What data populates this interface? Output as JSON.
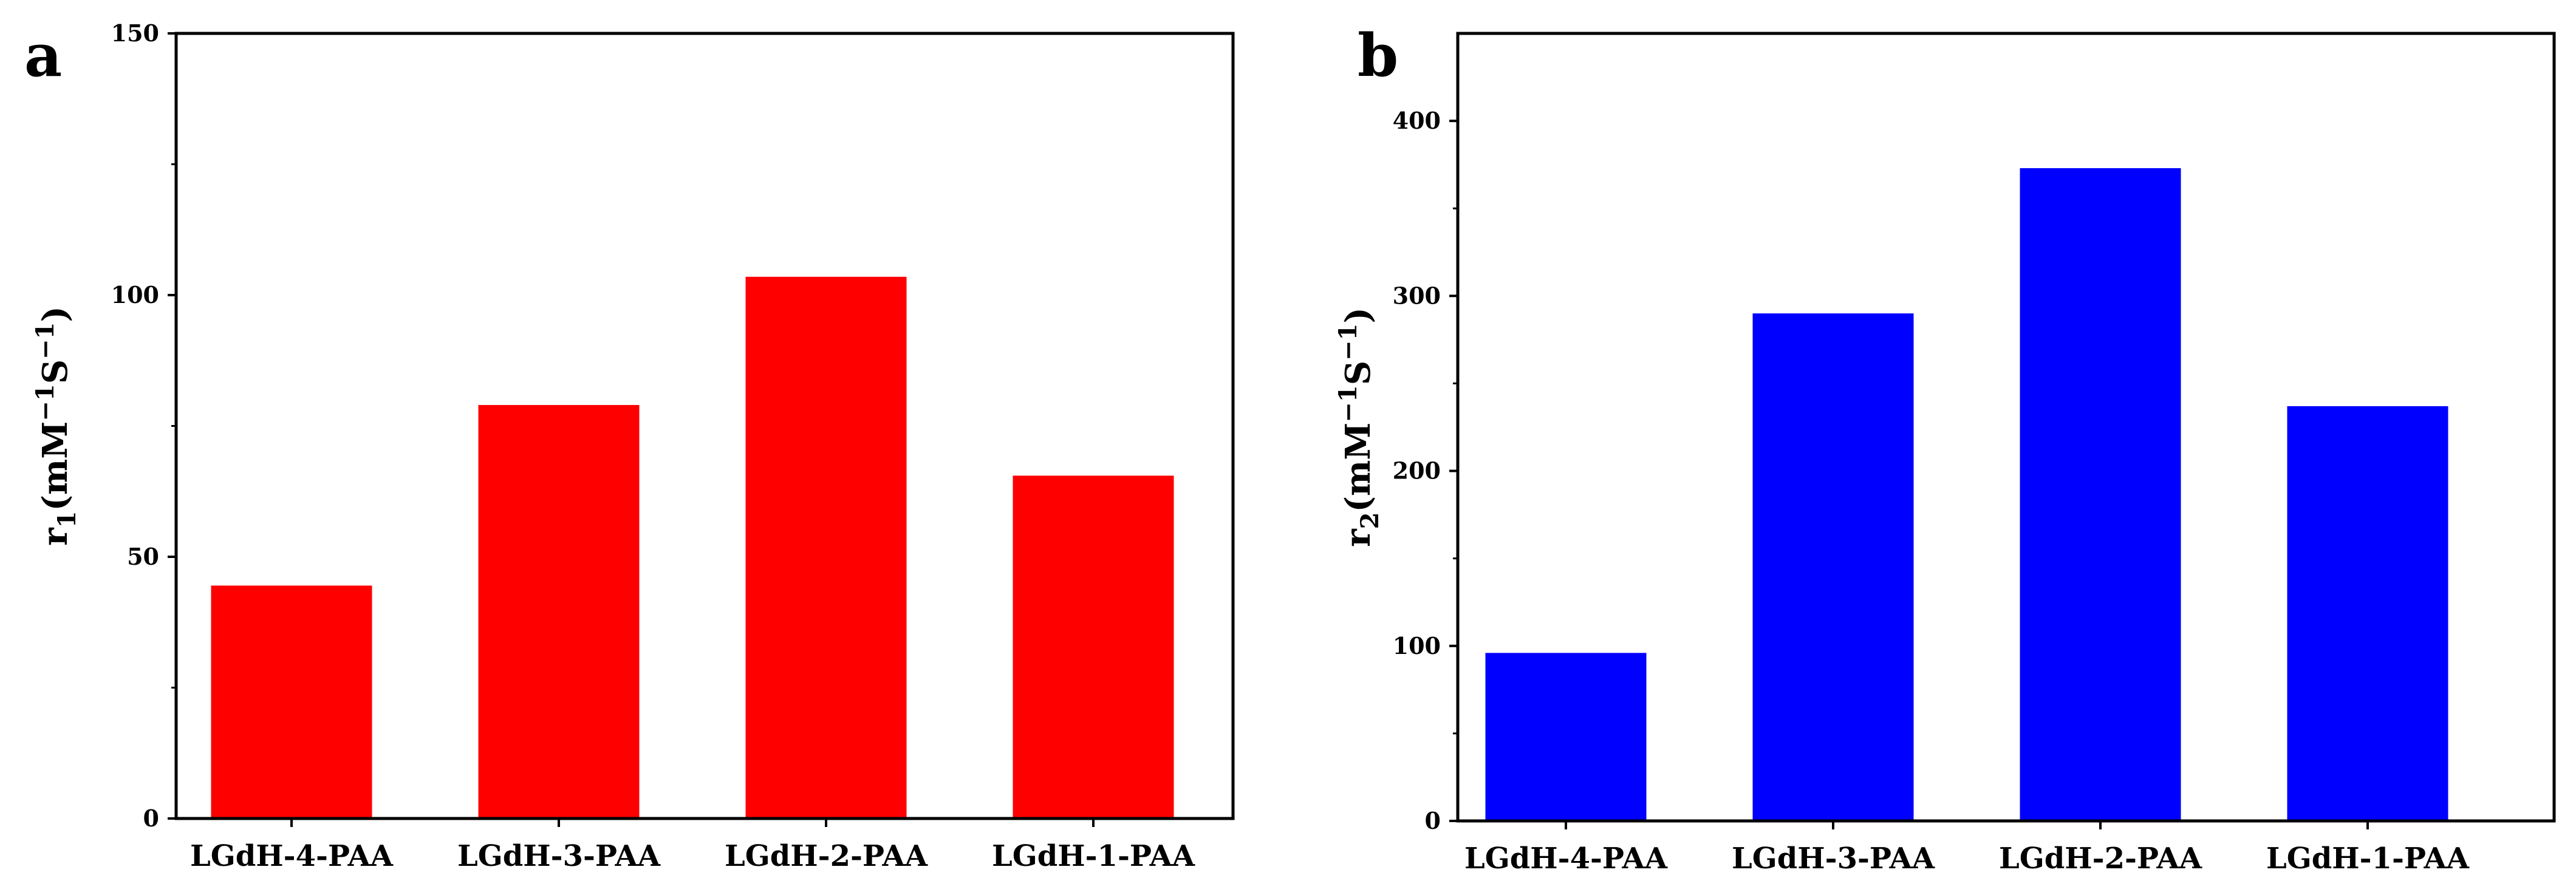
{
  "chart_data": [
    {
      "panel": "a",
      "type": "bar",
      "categories": [
        "LGdH-4-PAA",
        "LGdH-3-PAA",
        "LGdH-2-PAA",
        "LGdH-1-PAA"
      ],
      "values": [
        44.5,
        79,
        103.5,
        65.5
      ],
      "ylim": [
        0,
        150
      ],
      "yticks": [
        "0",
        "50",
        "100",
        "150"
      ],
      "ylabel": {
        "main": "r",
        "sub": "1",
        "open": "(mM",
        "sup1": "−1",
        "mid": "S",
        "sup2": "−1",
        "close": ")"
      },
      "xlabel": "",
      "color": "#ff0000",
      "grid": false,
      "legend": "none"
    },
    {
      "panel": "b",
      "type": "bar",
      "categories": [
        "LGdH-4-PAA",
        "LGdH-3-PAA",
        "LGdH-2-PAA",
        "LGdH-1-PAA"
      ],
      "values": [
        96,
        290,
        373,
        237
      ],
      "ylim": [
        0,
        450
      ],
      "yticks": [
        "0",
        "100",
        "200",
        "300",
        "400"
      ],
      "ylabel": {
        "main": "r",
        "sub": "2",
        "open": "(mM",
        "sup1": "−1",
        "mid": "S",
        "sup2": "−1",
        "close": ")"
      },
      "xlabel": "",
      "color": "#0000ff",
      "grid": false,
      "legend": "none"
    }
  ]
}
